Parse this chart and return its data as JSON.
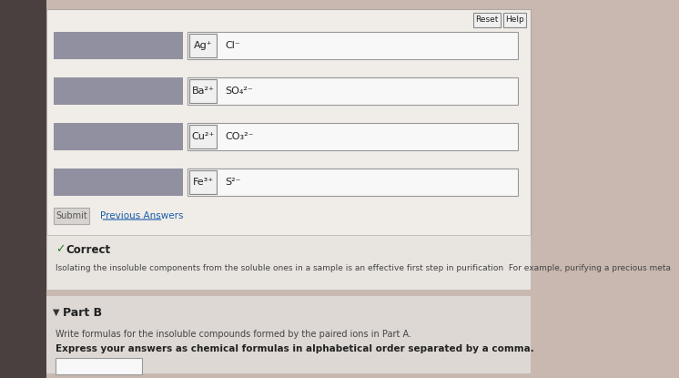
{
  "bg_color": "#c8b8b0",
  "panel_bg": "#d4c8c2",
  "main_panel_bg": "#e8e0dc",
  "white_panel_bg": "#f0ece8",
  "correct_panel_bg": "#e8e4e0",
  "bottom_panel_bg": "#ddd8d4",
  "left_bar_color": "#9090a0",
  "input_box_bg": "#f5f5f5",
  "input_box_border": "#888888",
  "reset_btn_bg": "#f0f0f0",
  "reset_btn_border": "#888888",
  "submit_btn_bg": "#d8d4d0",
  "correct_green": "#2d7d2d",
  "link_blue": "#1a5fa8",
  "text_color": "#222222",
  "light_text": "#444444",
  "rows": [
    {
      "left_label": "Ag⁺",
      "right_label": "Cl⁻"
    },
    {
      "left_label": "Ba²⁺",
      "right_label": "SO₄²⁻"
    },
    {
      "left_label": "Cu²⁺",
      "right_label": "CO₃²⁻"
    },
    {
      "left_label": "Fe³⁺",
      "right_label": "S²⁻"
    }
  ],
  "correct_text": "Correct",
  "correct_body": "Isolating the insoluble components from the soluble ones in a sample is an effective first step in purification  For example, purifying a precious meta",
  "part_b_label": "Part B",
  "part_b_line1": "Write formulas for the insoluble compounds formed by the paired ions in Part A.",
  "part_b_line2": "Express your answers as chemical formulas in alphabetical order separated by a comma.",
  "reset_label": "Reset",
  "help_label": "Help",
  "submit_label": "Submit",
  "previous_label": "Previous Answers"
}
